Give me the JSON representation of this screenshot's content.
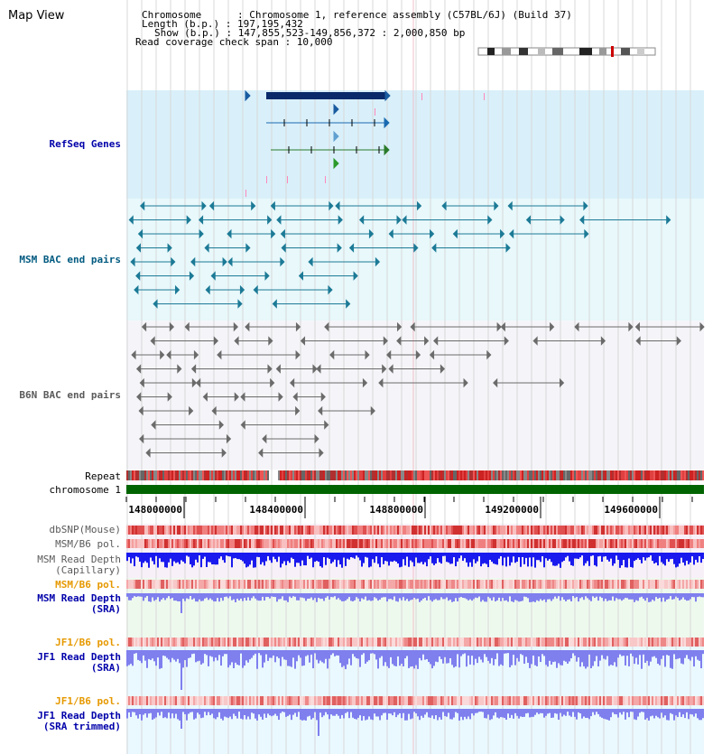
{
  "title": "Map View",
  "header": {
    "chromosome_line": "Chromosome      : Chromosome 1, reference assembly (C57BL/6J) (Build 37)",
    "length_line": "Length (b.p.) : 197,195,432",
    "show_line": "Show (b.p.) : 147,855,523-149,856,372 : 2,000,850 bp",
    "coverage_line": "Read coverage check span : 10,000"
  },
  "tracks": {
    "refseq": "RefSeq Genes",
    "msm_bac": "MSM BAC end pairs",
    "b6n_bac": "B6N BAC end pairs",
    "repeat": "Repeat",
    "chromosome": "chromosome 1",
    "dbsnp": "dbSNP(Mouse)",
    "msm_b6_pol": "MSM/B6 pol.",
    "msm_depth_cap_1": "MSM Read Depth",
    "msm_depth_cap_2": "(Capillary)",
    "msm_b6_pol_2": "MSM/B6 pol.",
    "msm_depth_sra_1": "MSM Read Depth",
    "msm_depth_sra_2": "(SRA)",
    "jf1_b6_pol": "JF1/B6 pol.",
    "jf1_depth_sra_1": "JF1 Read Depth",
    "jf1_depth_sra_2": "(SRA)",
    "jf1_b6_pol_2": "JF1/B6 pol.",
    "jf1_depth_trim_1": "JF1 Read Depth",
    "jf1_depth_trim_2": "(SRA trimmed)"
  },
  "ruler": {
    "ticks": [
      "148000000",
      "148400000",
      "148800000",
      "149200000",
      "149600000"
    ]
  },
  "colors": {
    "refseq_bg": "#d9f0fa",
    "msm_bg": "#e8f8fb",
    "b6n_bg": "#f5f5f9",
    "depth_bg": "#eaf9ff",
    "sra_bg": "#eef9ee",
    "chromosome": "#006400",
    "depth_dark": "#1a1aee",
    "depth_light": "#7f7fee",
    "refseq_gene": "#0a2a6a",
    "msm_pair": "#1c7a96",
    "b6n_pair": "#6b6b6b"
  }
}
